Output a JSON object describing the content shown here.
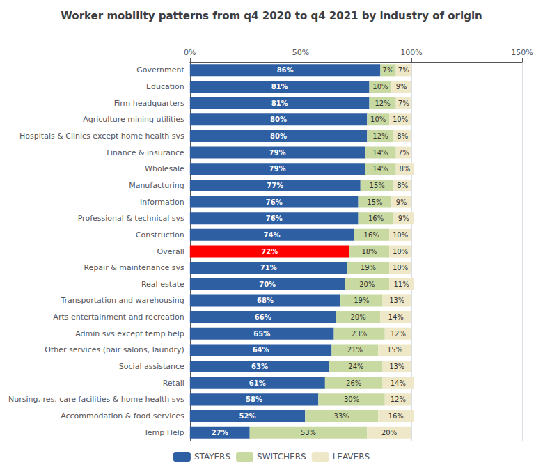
{
  "chart_data": {
    "type": "bar",
    "title": "Worker mobility patterns from q4 2020 to q4 2021 by industry of origin",
    "orientation": "horizontal",
    "stacked": true,
    "data_labels": true,
    "grid": true,
    "legend": "bottom",
    "categories": [
      "Government",
      "Education",
      "Firm headquarters",
      "Agriculture mining utilities",
      "Hospitals & Clinics except home health svs",
      "Finance & insurance",
      "Wholesale",
      "Manufacturing",
      "Information",
      "Professional & technical svs",
      "Construction",
      "Overall",
      "Repair & maintenance svs",
      "Real estate",
      "Transportation and warehousing",
      "Arts entertainment and recreation",
      "Admin svs except temp help",
      "Other services (hair salons, laundry)",
      "Social assistance",
      "Retail",
      "Nursing, res. care facilities & home health svs",
      "Accommodation & food services",
      "Temp Help"
    ],
    "xlim": [
      0,
      150
    ],
    "xticks": [
      {
        "value": 0,
        "label": "0%"
      },
      {
        "value": 50,
        "label": "50%"
      },
      {
        "value": 100,
        "label": "100%"
      },
      {
        "value": 150,
        "label": "150%"
      }
    ],
    "series": [
      {
        "name": "STAYERS",
        "color": "#2E5FA3",
        "colors": [
          "#2E5FA3",
          "#2E5FA3",
          "#2E5FA3",
          "#2E5FA3",
          "#2E5FA3",
          "#2E5FA3",
          "#2E5FA3",
          "#2E5FA3",
          "#2E5FA3",
          "#2E5FA3",
          "#2E5FA3",
          "#FF0000",
          "#2E5FA3",
          "#2E5FA3",
          "#2E5FA3",
          "#2E5FA3",
          "#2E5FA3",
          "#2E5FA3",
          "#2E5FA3",
          "#2E5FA3",
          "#2E5FA3",
          "#2E5FA3",
          "#2E5FA3"
        ],
        "values": [
          86,
          81,
          81,
          80,
          80,
          79,
          79,
          77,
          76,
          76,
          74,
          72,
          71,
          70,
          68,
          66,
          65,
          64,
          63,
          61,
          58,
          52,
          27
        ],
        "value_labels": [
          "86%",
          "81%",
          "81%",
          "80%",
          "80%",
          "79%",
          "79%",
          "77%",
          "76%",
          "76%",
          "74%",
          "72%",
          "71%",
          "70%",
          "68%",
          "66%",
          "65%",
          "64%",
          "63%",
          "61%",
          "58%",
          "52%",
          "27%"
        ]
      },
      {
        "name": "SWITCHERS",
        "color": "#C8D9A2",
        "values": [
          7,
          10,
          12,
          10,
          12,
          14,
          14,
          15,
          15,
          16,
          16,
          18,
          19,
          20,
          19,
          20,
          23,
          21,
          24,
          26,
          30,
          33,
          53
        ],
        "value_labels": [
          "7%",
          "10%",
          "12%",
          "10%",
          "12%",
          "14%",
          "14%",
          "15%",
          "15%",
          "16%",
          "16%",
          "18%",
          "19%",
          "20%",
          "19%",
          "20%",
          "23%",
          "21%",
          "24%",
          "26%",
          "30%",
          "33%",
          "53%"
        ]
      },
      {
        "name": "LEAVERS",
        "color": "#EEE8C8",
        "values": [
          7,
          9,
          7,
          10,
          8,
          7,
          8,
          8,
          9,
          9,
          10,
          10,
          10,
          11,
          13,
          14,
          12,
          15,
          13,
          14,
          12,
          16,
          20
        ],
        "value_labels": [
          "7%",
          "9%",
          "7%",
          "10%",
          "8%",
          "7%",
          "8%",
          "8%",
          "9%",
          "9%",
          "10%",
          "10%",
          "10%",
          "11%",
          "13%",
          "14%",
          "12%",
          "15%",
          "13%",
          "14%",
          "12%",
          "16%",
          "20%"
        ]
      }
    ]
  }
}
